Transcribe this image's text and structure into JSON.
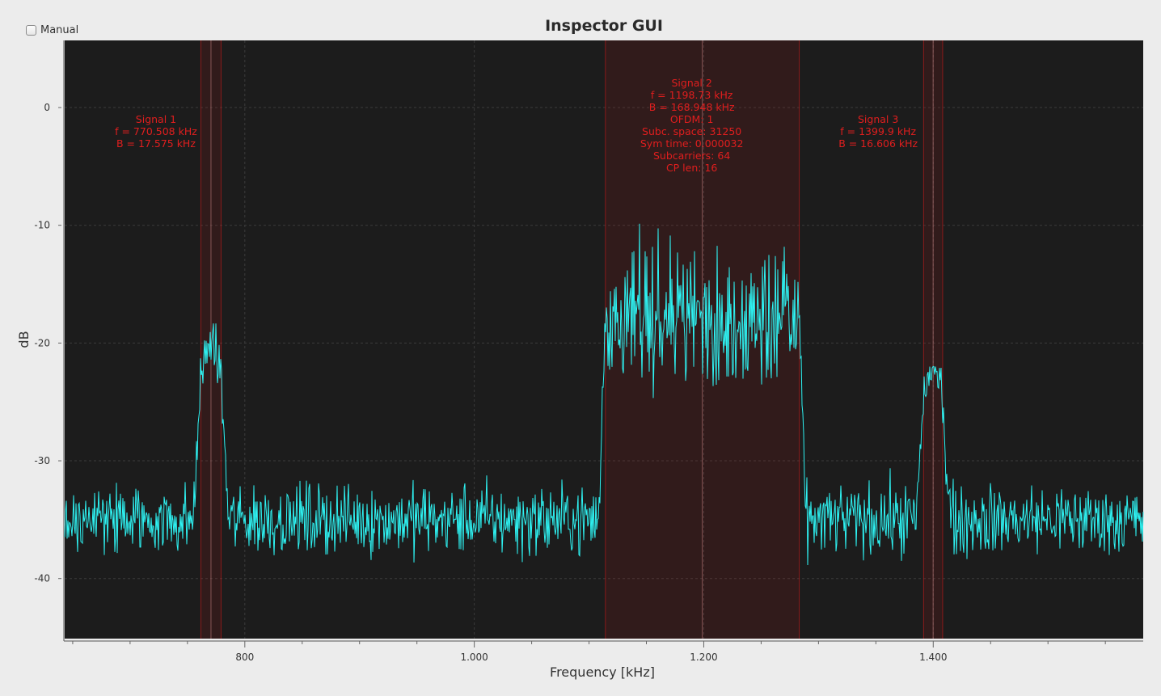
{
  "window": {
    "title": "Inspector GUI"
  },
  "controls": {
    "manual_label": "Manual",
    "manual_checked": false
  },
  "colors": {
    "plot_background": "#1c1c1c",
    "trace": "#2ef2f2",
    "signal_overlay": "#cc1a1a",
    "annotation_text": "#e01e1e",
    "page_background": "#ececec"
  },
  "chart_data": {
    "type": "line",
    "title": "Inspector GUI",
    "xlabel": "Frequency [kHz]",
    "ylabel": "dB",
    "xlim": [
      643,
      1583
    ],
    "ylim": [
      -45.1,
      5.7
    ],
    "x_ticks": [
      800,
      1000,
      1200,
      1400
    ],
    "x_tick_labels": [
      "800",
      "1.000",
      "1.200",
      "1.400"
    ],
    "y_ticks": [
      0,
      -10,
      -20,
      -30,
      -40
    ],
    "y_tick_labels": [
      "0",
      "-10",
      "-20",
      "-30",
      "-40"
    ],
    "grid": true,
    "series": [
      {
        "noise_floor_db": -35,
        "noise_spread_db": 2.2,
        "bands": [
          {
            "center_khz": 770.5,
            "bandwidth_khz": 17.6,
            "peak_db": -18.2,
            "level_db": -22.5
          },
          {
            "center_khz": 1198.7,
            "bandwidth_khz": 168.9,
            "peak_db": -9.3,
            "level_db": -18
          },
          {
            "center_khz": 1399.9,
            "bandwidth_khz": 16.6,
            "peak_db": -22,
            "level_db": -24.5
          }
        ]
      }
    ],
    "signals": [
      {
        "center_khz": 770.508,
        "bandwidth_khz": 17.575,
        "lines": [
          "Signal 1",
          "f = 770.508 kHz",
          "B = 17.575 kHz"
        ]
      },
      {
        "center_khz": 1198.73,
        "bandwidth_khz": 168.948,
        "lines": [
          "Signal 2",
          "f = 1198.73 kHz",
          "B = 168.948 kHz",
          "OFDM: 1",
          "Subc. space: 31250",
          "Sym time: 0.000032",
          "Subcarriers: 64",
          "CP len: 16"
        ]
      },
      {
        "center_khz": 1399.9,
        "bandwidth_khz": 16.606,
        "lines": [
          "Signal 3",
          "f = 1399.9 kHz",
          "B = 16.606 kHz"
        ]
      }
    ]
  }
}
